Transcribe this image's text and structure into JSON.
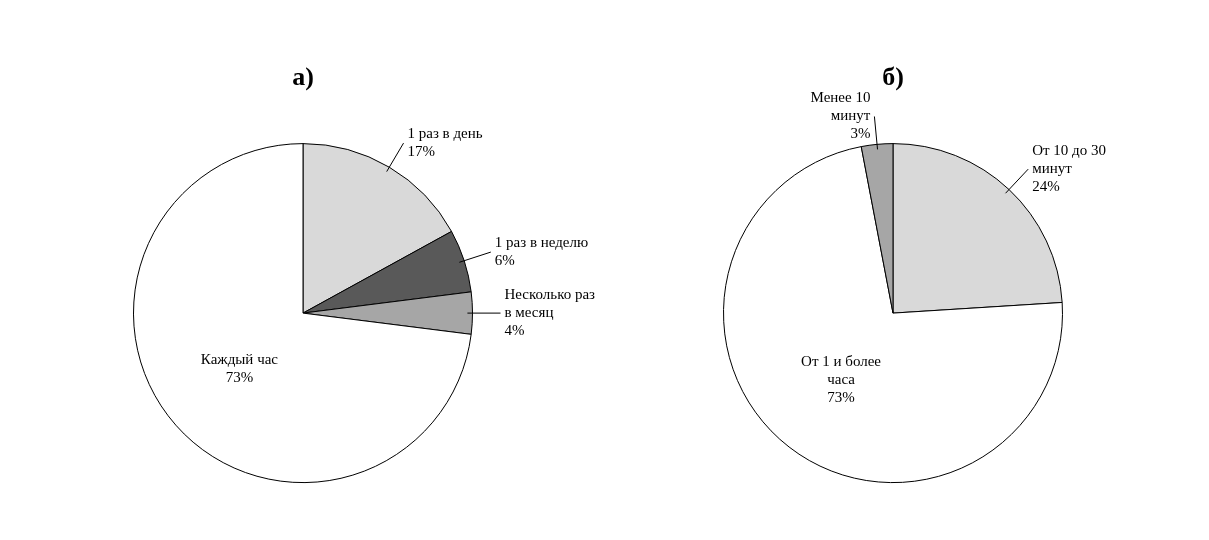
{
  "chart_data": [
    {
      "type": "pie",
      "title": "а)",
      "categories": [
        "1 раз в день",
        "1 раз в неделю",
        "Несколько раз в месяц",
        "Каждый час"
      ],
      "values": [
        17,
        6,
        4,
        73
      ],
      "value_labels": [
        "17%",
        "6%",
        "4%",
        "73%"
      ],
      "colors": [
        "#d9d9d9",
        "#595959",
        "#a6a6a6",
        "#ffffff"
      ],
      "legend": false
    },
    {
      "type": "pie",
      "title": "б)",
      "categories": [
        "От 10 до 30 минут",
        "От 1 и более часа",
        "Менее 10 минут"
      ],
      "values": [
        24,
        73,
        3
      ],
      "value_labels": [
        "24%",
        "73%",
        "3%"
      ],
      "colors": [
        "#d9d9d9",
        "#ffffff",
        "#a6a6a6"
      ],
      "legend": false
    }
  ]
}
